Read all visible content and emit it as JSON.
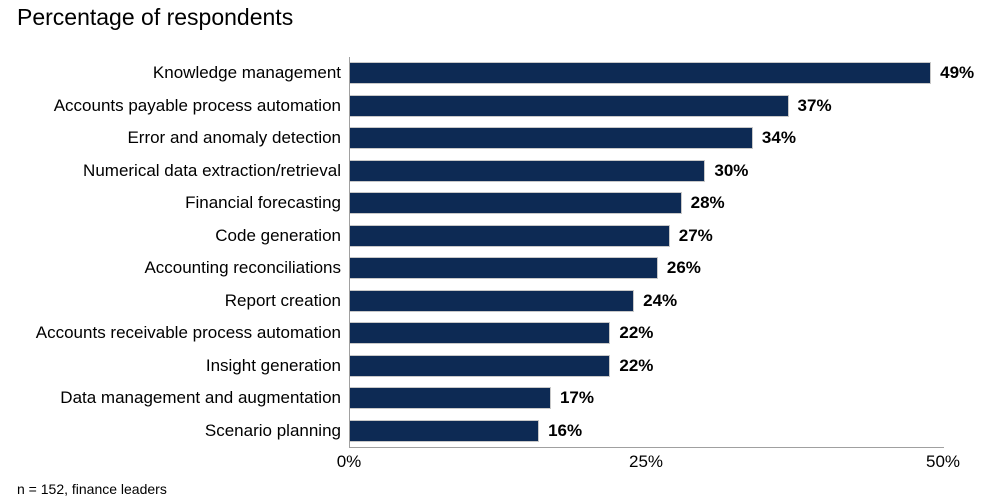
{
  "title": "Percentage of respondents",
  "footnote": "n = 152, finance leaders",
  "colors": {
    "bar": "#0d2a54",
    "axis": "#a0a0a0",
    "text": "#000000",
    "background": "#ffffff"
  },
  "chart_data": {
    "type": "bar",
    "orientation": "horizontal",
    "title": "Percentage of respondents",
    "xlabel": "",
    "ylabel": "",
    "xlim": [
      0,
      50
    ],
    "grid": false,
    "legend": false,
    "categories": [
      "Knowledge management",
      "Accounts payable process automation",
      "Error and anomaly detection",
      "Numerical data extraction/retrieval",
      "Financial forecasting",
      "Code generation",
      "Accounting reconciliations",
      "Report creation",
      "Accounts receivable process automation",
      "Insight generation",
      "Data management and augmentation",
      "Scenario planning"
    ],
    "values": [
      49,
      37,
      34,
      30,
      28,
      27,
      26,
      24,
      22,
      22,
      17,
      16
    ],
    "value_labels": [
      "49%",
      "37%",
      "34%",
      "30%",
      "28%",
      "27%",
      "26%",
      "24%",
      "22%",
      "22%",
      "17%",
      "16%"
    ],
    "x_ticks": [
      {
        "label": "0%",
        "value": 0
      },
      {
        "label": "25%",
        "value": 25
      },
      {
        "label": "50%",
        "value": 50
      }
    ],
    "footnote": "n = 152, finance leaders"
  }
}
